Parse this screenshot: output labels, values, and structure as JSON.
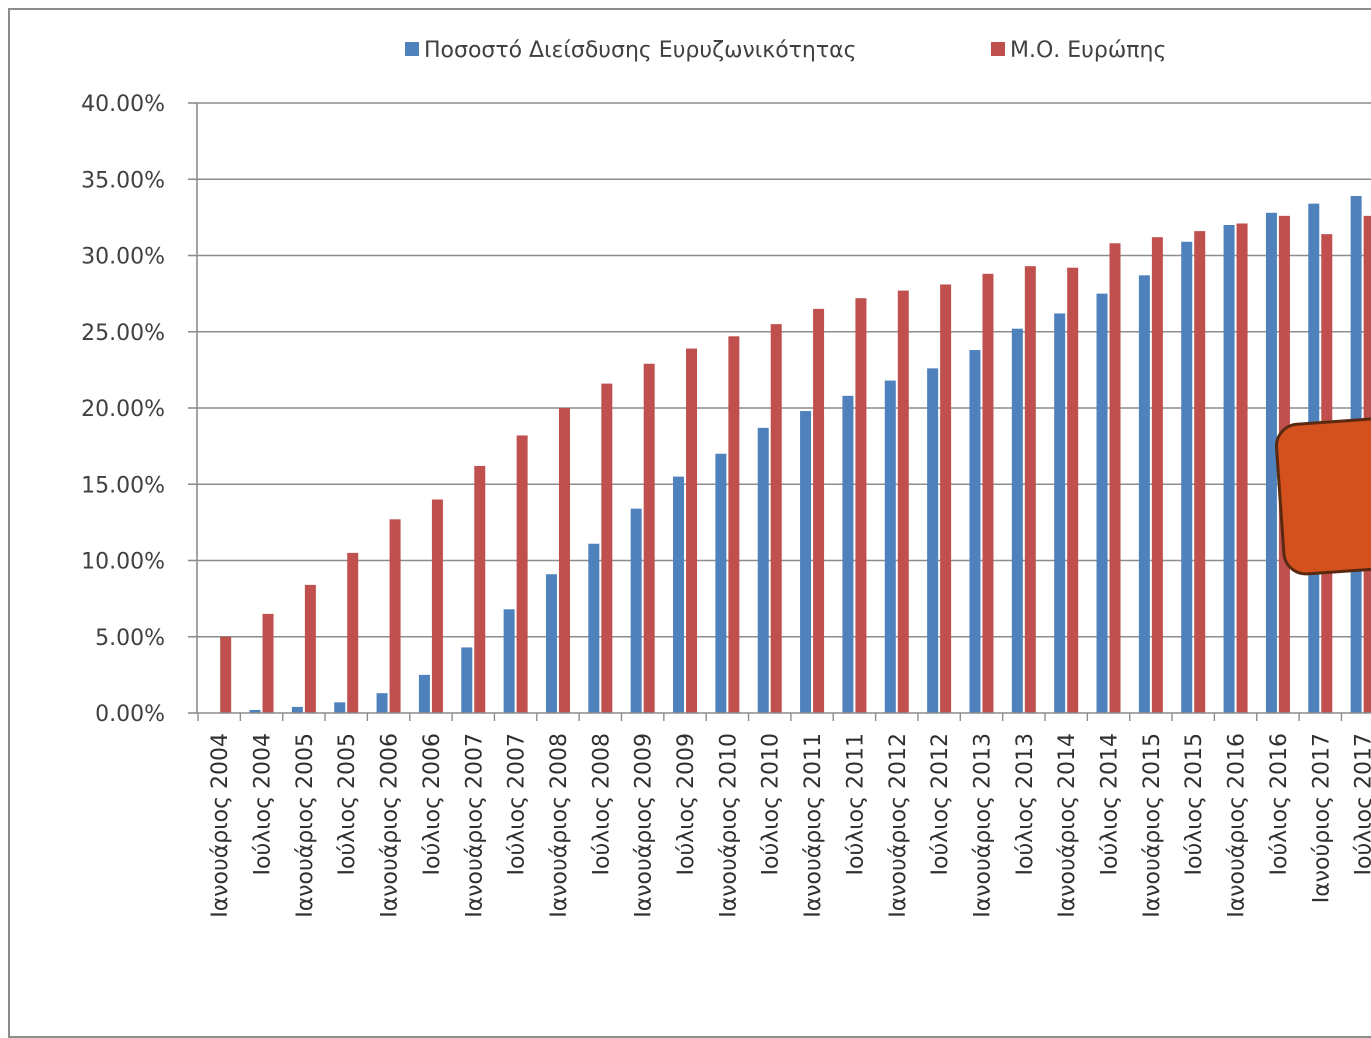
{
  "chart_data": {
    "type": "bar",
    "categories": [
      "Ιανουάριος 2004",
      "Ιούλιος 2004",
      "Ιανουάριος 2005",
      "Ιούλιος 2005",
      "Ιανουάριος 2006",
      "Ιούλιος 2006",
      "Ιανουάριος 2007",
      "Ιούλιος 2007",
      "Ιανουάριος 2008",
      "Ιούλιος 2008",
      "Ιανουάριος 2009",
      "Ιούλιος 2009",
      "Ιανουάριος 2010",
      "Ιούλιος 2010",
      "Ιανουάριος 2011",
      "Ιούλιος 2011",
      "Ιανουάριος 2012",
      "Ιούλιος 2012",
      "Ιανουάριος 2013",
      "Ιούλιος 2013",
      "Ιανουάριος 2014",
      "Ιούλιος 2014",
      "Ιανουάριος 2015",
      "Ιούλιος 2015",
      "Ιανουάριος 2016",
      "Ιούλιος 2016",
      "Ιανούριος 2017",
      "Ιούλιος 2017"
    ],
    "series": [
      {
        "name": "Ποσοστό Διείσδυσης Ευρυζωνικότητας",
        "color": "#4f81bd",
        "values": [
          0.0,
          0.2,
          0.4,
          0.7,
          1.3,
          2.5,
          4.3,
          6.8,
          9.1,
          11.1,
          13.4,
          15.5,
          17.0,
          18.7,
          19.8,
          20.8,
          21.8,
          22.6,
          23.8,
          25.2,
          26.2,
          27.5,
          28.7,
          30.9,
          32.0,
          32.8,
          33.4,
          33.9
        ]
      },
      {
        "name": "Μ.Ο. Ευρώπης",
        "color": "#c0504d",
        "values": [
          5.0,
          6.5,
          8.4,
          10.5,
          12.7,
          14.0,
          16.2,
          18.2,
          20.0,
          21.6,
          22.9,
          23.9,
          24.7,
          25.5,
          26.5,
          27.2,
          27.7,
          28.1,
          28.8,
          29.3,
          29.2,
          30.8,
          31.2,
          31.6,
          32.1,
          32.6,
          31.4,
          32.6
        ]
      }
    ],
    "ylim": [
      0,
      40
    ],
    "y_ticks": [
      "0.00%",
      "5.00%",
      "10.00%",
      "15.00%",
      "20.00%",
      "25.00%",
      "30.00%",
      "35.00%",
      "40.00%"
    ],
    "grid": true,
    "legend_position": "top"
  },
  "overlay_shape": {
    "color": "#d4501c",
    "border": "#5a2a10"
  }
}
